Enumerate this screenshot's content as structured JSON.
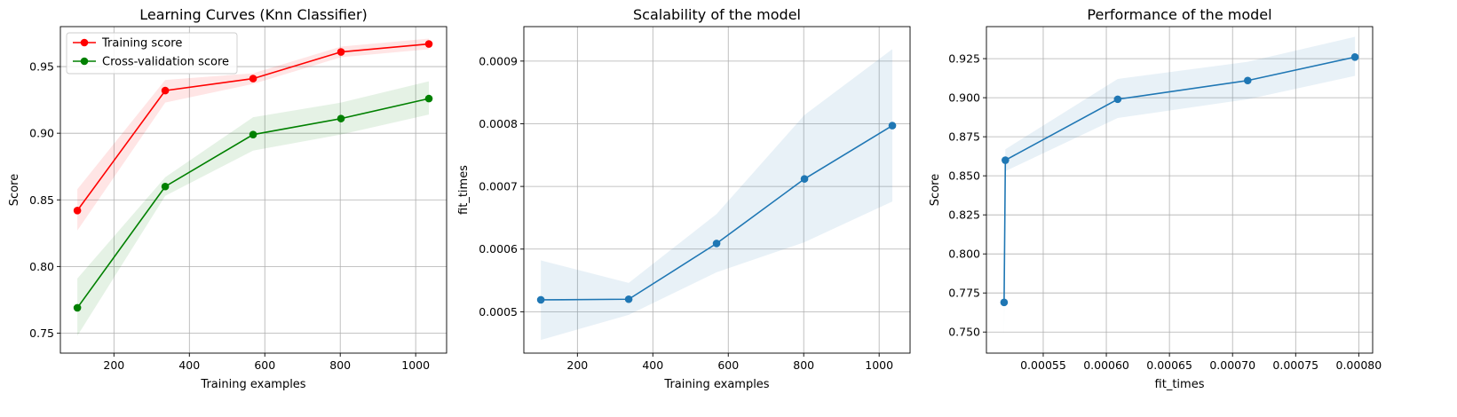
{
  "chart_data": [
    {
      "type": "line",
      "title": "Learning Curves (Knn Classifier)",
      "xlabel": "Training examples",
      "ylabel": "Score",
      "xlim": [
        58,
        1082
      ],
      "ylim": [
        0.735,
        0.98
      ],
      "xticks": [
        200,
        400,
        600,
        800,
        1000
      ],
      "xtick_labels": [
        "200",
        "400",
        "600",
        "800",
        "1000"
      ],
      "yticks": [
        0.75,
        0.8,
        0.85,
        0.9,
        0.95
      ],
      "ytick_labels": [
        "0.75",
        "0.80",
        "0.85",
        "0.90",
        "0.95"
      ],
      "grid": true,
      "legend": "upper-left",
      "series": [
        {
          "name": "Training score",
          "color": "#ff0000",
          "band_color": "#ff0000",
          "x": [
            103,
            336,
            569,
            802,
            1035
          ],
          "y": [
            0.842,
            0.932,
            0.941,
            0.961,
            0.967
          ],
          "lower": [
            0.827,
            0.923,
            0.937,
            0.957,
            0.963
          ],
          "upper": [
            0.858,
            0.94,
            0.945,
            0.965,
            0.971
          ]
        },
        {
          "name": "Cross-validation score",
          "color": "#008000",
          "band_color": "#008000",
          "x": [
            103,
            336,
            569,
            802,
            1035
          ],
          "y": [
            0.769,
            0.86,
            0.899,
            0.911,
            0.926
          ],
          "lower": [
            0.748,
            0.853,
            0.887,
            0.899,
            0.914
          ],
          "upper": [
            0.791,
            0.867,
            0.912,
            0.923,
            0.939
          ]
        }
      ]
    },
    {
      "type": "line",
      "title": "Scalability of the model",
      "xlabel": "Training examples",
      "ylabel": "fit_times",
      "xlim": [
        58,
        1082
      ],
      "ylim": [
        0.000434,
        0.000955
      ],
      "xticks": [
        200,
        400,
        600,
        800,
        1000
      ],
      "xtick_labels": [
        "200",
        "400",
        "600",
        "800",
        "1000"
      ],
      "yticks": [
        0.0005,
        0.0006,
        0.0007,
        0.0008,
        0.0009
      ],
      "ytick_labels": [
        "0.0005",
        "0.0006",
        "0.0007",
        "0.0008",
        "0.0009"
      ],
      "grid": true,
      "series": [
        {
          "color": "#1f77b4",
          "band_color": "#1f77b4",
          "x": [
            103,
            336,
            569,
            802,
            1035
          ],
          "y": [
            0.000519,
            0.00052,
            0.000609,
            0.000712,
            0.000797
          ],
          "lower": [
            0.000455,
            0.000495,
            0.000563,
            0.000611,
            0.000676
          ],
          "upper": [
            0.000582,
            0.000546,
            0.000656,
            0.000814,
            0.000919
          ]
        }
      ]
    },
    {
      "type": "line",
      "title": "Performance of the model",
      "xlabel": "fit_times",
      "ylabel": "Score",
      "xlim": [
        0.000505,
        0.000811
      ],
      "ylim": [
        0.7365,
        0.9455
      ],
      "xticks": [
        0.00055,
        0.0006,
        0.00065,
        0.0007,
        0.00075,
        0.0008
      ],
      "xtick_labels": [
        "0.00055",
        "0.00060",
        "0.00065",
        "0.00070",
        "0.00075",
        "0.00080"
      ],
      "yticks": [
        0.75,
        0.775,
        0.8,
        0.825,
        0.85,
        0.875,
        0.9,
        0.925
      ],
      "ytick_labels": [
        "0.750",
        "0.775",
        "0.800",
        "0.825",
        "0.850",
        "0.875",
        "0.900",
        "0.925"
      ],
      "grid": true,
      "series": [
        {
          "color": "#1f77b4",
          "band_color": "#1f77b4",
          "x": [
            0.000519,
            0.00052,
            0.000609,
            0.000712,
            0.000797
          ],
          "y": [
            0.769,
            0.86,
            0.899,
            0.911,
            0.926
          ],
          "lower": [
            0.748,
            0.853,
            0.887,
            0.899,
            0.914
          ],
          "upper": [
            0.791,
            0.867,
            0.912,
            0.923,
            0.939
          ]
        }
      ]
    }
  ]
}
